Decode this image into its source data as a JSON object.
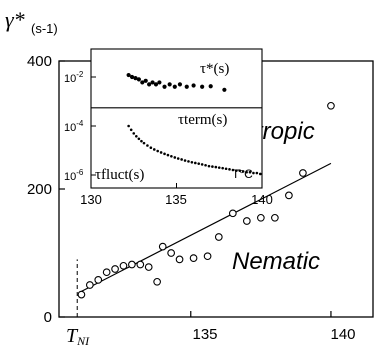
{
  "chart_data": [
    {
      "type": "scatter",
      "ylabel": "γ*",
      "ylabel_unit": "(s-1)",
      "xlim": [
        130.3,
        141.5
      ],
      "ylim": [
        0,
        400
      ],
      "x_ticks": [
        135,
        140
      ],
      "y_ticks": [
        0,
        200,
        400
      ],
      "x_origin_label": "T",
      "x_origin_label_sub": "NI",
      "region_labels": [
        "Isotropic",
        "Nematic"
      ],
      "grid": false,
      "series": [
        {
          "marker": "open-circle",
          "x": [
            131.1,
            131.4,
            131.7,
            132.0,
            132.3,
            132.6,
            132.9,
            133.2,
            133.5,
            133.8,
            134.0,
            134.3,
            134.6,
            135.1,
            135.6,
            136.0,
            136.5,
            137.0,
            137.5,
            138.0,
            138.5,
            139.0,
            140.0
          ],
          "y": [
            35,
            50,
            58,
            70,
            75,
            80,
            82,
            82,
            78,
            55,
            110,
            100,
            90,
            92,
            95,
            125,
            162,
            150,
            155,
            155,
            190,
            225,
            330
          ]
        },
        {
          "marker": "line",
          "x": [
            131.1,
            140.0
          ],
          "y": [
            40,
            240
          ]
        }
      ],
      "annotations": [
        {
          "type": "vertical-dashed-line",
          "x": 130.95,
          "y_range": [
            0,
            90
          ]
        }
      ]
    },
    {
      "type": "scatter",
      "inset": true,
      "xlim": [
        130,
        140
      ],
      "y_scale": "log",
      "x_ticks": [
        130,
        135,
        140
      ],
      "y_ticks": [
        {
          "base": "10",
          "exp": "-2"
        },
        {
          "base": "10",
          "exp": "-4"
        },
        {
          "base": "10",
          "exp": "-6"
        }
      ],
      "labels": {
        "tau_star": "τ*(s)",
        "tau_term": "τterm(s)",
        "tau_fluct": "τfluct(s)",
        "temp_unit": "T°C"
      },
      "series": [
        {
          "name": "τ*(s)",
          "marker": "filled-dot",
          "x": [
            132.2,
            132.4,
            132.6,
            132.8,
            133.0,
            133.2,
            133.4,
            133.6,
            133.8,
            134.0,
            134.3,
            134.6,
            134.9,
            135.2,
            135.6,
            136.0,
            136.5,
            137.0,
            137.8
          ],
          "y": [
            0.012,
            0.01,
            0.009,
            0.008,
            0.006,
            0.007,
            0.005,
            0.006,
            0.005,
            0.006,
            0.004,
            0.005,
            0.004,
            0.005,
            0.004,
            0.0045,
            0.004,
            0.0042,
            0.003
          ]
        },
        {
          "name": "τterm(s)",
          "marker": "line",
          "x": [
            130,
            140
          ],
          "y": [
            0.00055,
            0.00055
          ]
        },
        {
          "name": "τfluct(s)",
          "marker": "small-dot",
          "x": [
            132.2,
            132.35,
            132.5,
            132.65,
            132.8,
            132.95,
            133.1,
            133.3,
            133.5,
            133.7,
            133.9,
            134.1,
            134.3,
            134.5,
            134.7,
            134.9,
            135.1,
            135.3,
            135.5,
            135.7,
            135.9,
            136.1,
            136.3,
            136.5,
            136.7,
            136.9,
            137.1,
            137.3,
            137.5,
            137.7,
            137.9,
            138.1,
            138.3,
            138.5,
            138.7,
            138.9,
            139.1,
            139.3,
            139.5,
            139.7,
            139.9
          ],
          "y": [
            0.0001,
            7e-05,
            5e-05,
            3.8e-05,
            3e-05,
            2.4e-05,
            2e-05,
            1.6e-05,
            1.3e-05,
            1.1e-05,
            9.5e-06,
            8.3e-06,
            7.3e-06,
            6.5e-06,
            5.8e-06,
            5.2e-06,
            4.7e-06,
            4.3e-06,
            3.9e-06,
            3.6e-06,
            3.3e-06,
            3.1e-06,
            2.9e-06,
            2.7e-06,
            2.5e-06,
            2.3e-06,
            2.2e-06,
            2.1e-06,
            2e-06,
            1.9e-06,
            1.8e-06,
            1.7e-06,
            1.6e-06,
            1.5e-06,
            1.5e-06,
            1.4e-06,
            1.3e-06,
            1.3e-06,
            1.2e-06,
            1.2e-06,
            1.1e-06
          ]
        }
      ]
    }
  ]
}
